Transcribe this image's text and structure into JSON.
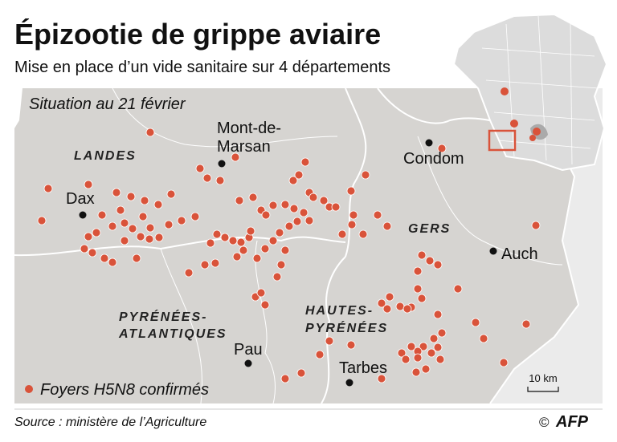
{
  "header": {
    "title": "Épizootie de grippe aviaire",
    "subtitle": "Mise en place d’un vide sanitaire sur 4 départements"
  },
  "map": {
    "situation": "Situation au 21 février",
    "departments": [
      {
        "lines": [
          "LANDES"
        ]
      },
      {
        "lines": [
          "GERS"
        ]
      },
      {
        "lines": [
          "PYRÉNÉES-",
          "ATLANTIQUES"
        ]
      },
      {
        "lines": [
          "HAUTES-",
          "PYRÉNÉES"
        ]
      }
    ],
    "cities": [
      {
        "lines": [
          "Mont-de-",
          "Marsan"
        ]
      },
      {
        "lines": [
          "Dax"
        ]
      },
      {
        "lines": [
          "Condom"
        ]
      },
      {
        "lines": [
          "Auch"
        ]
      },
      {
        "lines": [
          "Pau"
        ]
      },
      {
        "lines": [
          "Tarbes"
        ]
      }
    ],
    "legend": "Foyers H5N8 confirmés",
    "scale": "10 km"
  },
  "footer": {
    "source": "Source : ministère de l’Agriculture",
    "copyright": "©",
    "agency": "AFP"
  }
}
